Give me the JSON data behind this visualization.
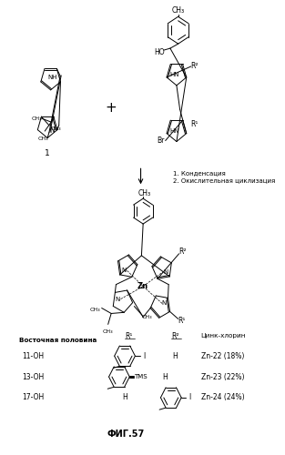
{
  "title": "ФИГ.57",
  "background_color": "#ffffff",
  "step1": "1. Конденсация",
  "step2": "2. Окислительная циклизация",
  "label_eastern": "Восточная половина",
  "label_znchlorin": "Цинк-хлорин",
  "fig_width": 3.13,
  "fig_height": 5.0,
  "dpi": 100
}
